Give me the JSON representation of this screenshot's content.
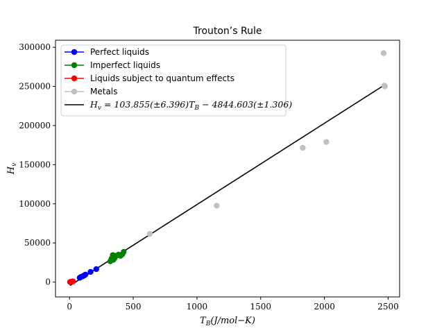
{
  "chart_data": {
    "type": "scatter",
    "title": "Trouton’s Rule",
    "xlabel": "T_B(J/mol−K)",
    "ylabel": "H_v",
    "xlim": [
      -110,
      2590
    ],
    "ylim": [
      -19000,
      309000
    ],
    "x_ticks": [
      0,
      500,
      1000,
      1500,
      2000,
      2500
    ],
    "y_ticks": [
      0,
      50000,
      100000,
      150000,
      200000,
      250000,
      300000
    ],
    "x_tick_labels": [
      "0",
      "500",
      "1000",
      "1500",
      "2000",
      "2500"
    ],
    "y_tick_labels": [
      "0",
      "50000",
      "100000",
      "150000",
      "200000",
      "250000",
      "300000"
    ],
    "grid": false,
    "legend_position": "upper-left",
    "series": [
      {
        "name": "Perfect liquids",
        "color": "#0000ff",
        "x": [
          80,
          90,
          105,
          115,
          125,
          165,
          210
        ],
        "y": [
          5500,
          6500,
          7500,
          8500,
          9500,
          13000,
          16500
        ]
      },
      {
        "name": "Imperfect liquids",
        "color": "#008000",
        "x": [
          320,
          330,
          340,
          345,
          355,
          365,
          385,
          400,
          415,
          425
        ],
        "y": [
          26500,
          30000,
          34500,
          28500,
          31000,
          33500,
          35000,
          33500,
          35500,
          38500
        ]
      },
      {
        "name": "Liquids subject to quantum effects",
        "color": "#ff0000",
        "x": [
          4,
          10,
          20,
          27
        ],
        "y": [
          100,
          300,
          500,
          900
        ]
      },
      {
        "name": "Metals",
        "color": "#c0c0c0",
        "x": [
          630,
          1155,
          1830,
          2015,
          2465,
          2470,
          2475
        ],
        "y": [
          61500,
          97500,
          171500,
          179000,
          292500,
          251000,
          250000
        ]
      }
    ],
    "fit": {
      "label_prefix": "H",
      "label_subscript": "v",
      "label_rest": " = 103.855(±6.396)T",
      "label_subscript2": "B",
      "label_tail": " − 4844.603(±1.306)",
      "slope": 103.855,
      "intercept": -4844.603,
      "x_range": [
        4,
        2475
      ],
      "color": "#000000"
    }
  }
}
